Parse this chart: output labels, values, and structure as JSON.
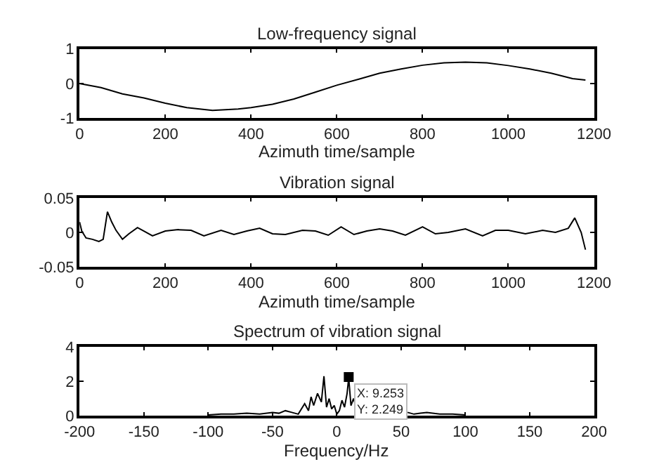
{
  "chart_data": [
    {
      "type": "line",
      "title": "Low-frequency signal",
      "xlabel": "Azimuth time/sample",
      "xlim": [
        0,
        1200
      ],
      "xticks": [
        0,
        200,
        400,
        600,
        800,
        1000,
        1200
      ],
      "ylim": [
        -1,
        1
      ],
      "yticks": [
        -1,
        0,
        1
      ],
      "series": [
        {
          "color": "#000000",
          "x": [
            0,
            50,
            100,
            150,
            200,
            250,
            310,
            370,
            400,
            450,
            500,
            550,
            600,
            650,
            700,
            750,
            800,
            850,
            900,
            950,
            1000,
            1050,
            1100,
            1150,
            1180
          ],
          "values": [
            0,
            -0.12,
            -0.3,
            -0.42,
            -0.57,
            -0.7,
            -0.78,
            -0.74,
            -0.7,
            -0.6,
            -0.45,
            -0.25,
            -0.05,
            0.12,
            0.3,
            0.42,
            0.53,
            0.6,
            0.62,
            0.6,
            0.52,
            0.42,
            0.3,
            0.14,
            0.1
          ]
        }
      ]
    },
    {
      "type": "line",
      "title": "Vibration signal",
      "xlabel": "Azimuth time/sample",
      "xlim": [
        0,
        1200
      ],
      "xticks": [
        0,
        200,
        400,
        600,
        800,
        1000,
        1200
      ],
      "ylim": [
        -0.05,
        0.05
      ],
      "yticks": [
        -0.05,
        0,
        0.05
      ],
      "series": [
        {
          "color": "#000000",
          "x": [
            0,
            5,
            15,
            30,
            45,
            55,
            65,
            75,
            85,
            100,
            115,
            135,
            150,
            170,
            200,
            230,
            260,
            290,
            330,
            360,
            390,
            420,
            450,
            480,
            520,
            550,
            580,
            610,
            640,
            670,
            700,
            730,
            760,
            800,
            830,
            860,
            900,
            940,
            970,
            1000,
            1040,
            1080,
            1110,
            1140,
            1155,
            1170,
            1180
          ],
          "values": [
            0.015,
            0.002,
            -0.008,
            -0.01,
            -0.013,
            -0.01,
            0.03,
            0.015,
            0.003,
            -0.01,
            -0.002,
            0.007,
            0.002,
            -0.005,
            0.002,
            0.004,
            0.003,
            -0.005,
            0.003,
            -0.003,
            0.002,
            0.006,
            -0.002,
            -0.003,
            0.003,
            0.002,
            -0.004,
            0.008,
            -0.003,
            0.002,
            0.005,
            0.002,
            -0.004,
            0.008,
            -0.002,
            0.0,
            0.005,
            -0.005,
            0.003,
            0.003,
            -0.002,
            0.003,
            0.0,
            0.006,
            0.021,
            0.0,
            -0.025
          ]
        }
      ]
    },
    {
      "type": "line",
      "title": "Spectrum of vibration signal",
      "xlabel": "Frequency/Hz",
      "xlim": [
        -200,
        200
      ],
      "xticks": [
        -200,
        -150,
        -100,
        -50,
        0,
        50,
        100,
        150,
        200
      ],
      "ylim": [
        0,
        4
      ],
      "yticks": [
        0,
        2,
        4
      ],
      "series": [
        {
          "color": "#000000",
          "x": [
            -100,
            -90,
            -80,
            -70,
            -60,
            -50,
            -45,
            -40,
            -35,
            -30,
            -25,
            -22,
            -20,
            -18,
            -15,
            -12,
            -10,
            -8,
            -6,
            -4,
            -2,
            0,
            2,
            4,
            6,
            8,
            9.253,
            11,
            13,
            15,
            18,
            20,
            25,
            30,
            35,
            40,
            45,
            50,
            55,
            60,
            65,
            70,
            80,
            90,
            100
          ],
          "values": [
            0.05,
            0.1,
            0.1,
            0.15,
            0.1,
            0.2,
            0.15,
            0.3,
            0.2,
            0.1,
            0.7,
            0.3,
            1.1,
            0.6,
            1.3,
            0.8,
            2.3,
            0.5,
            1.0,
            0.4,
            0.6,
            0.1,
            0.3,
            0.9,
            0.5,
            1.3,
            2.2,
            0.6,
            1.0,
            0.5,
            null,
            null,
            null,
            null,
            null,
            null,
            null,
            null,
            0.2,
            0.1,
            0.15,
            0.2,
            0.1,
            0.1,
            0.05
          ]
        },
        {
          "type": "scatter",
          "marker": "square",
          "color": "#000000",
          "x": [
            9.253
          ],
          "values": [
            2.249
          ]
        }
      ],
      "annotations": [
        {
          "text": "X: 9.253\nY: 2.249",
          "x": 9.253,
          "y": 2.249
        }
      ]
    }
  ]
}
